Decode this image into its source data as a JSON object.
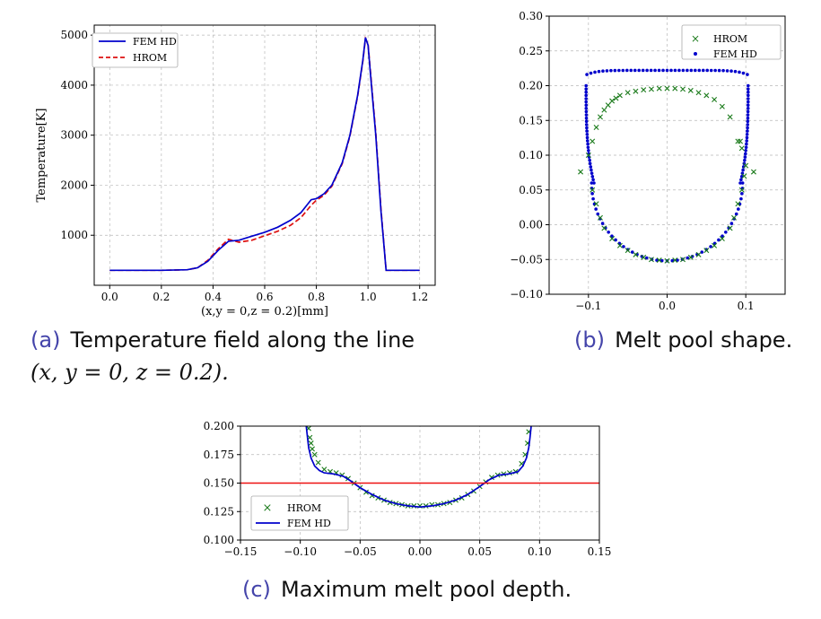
{
  "captions": {
    "a_label": "(a)",
    "a_text": "Temperature field along the line",
    "a_math": "(x, y = 0, z = 0.2).",
    "b_label": "(b)",
    "b_text": "Melt pool shape.",
    "c_label": "(c)",
    "c_text": "Maximum melt pool depth."
  },
  "colors": {
    "fem": "#0000cc",
    "hrom": "#dd1111",
    "hrom_marker": "#1a7a1a",
    "threshold": "#ee1111"
  },
  "chart_data": [
    {
      "type": "line",
      "id": "a",
      "xlabel": "(x,y = 0,z = 0.2)[mm]",
      "ylabel": "Temperature[K]",
      "xlim": [
        -0.06,
        1.26
      ],
      "ylim": [
        0,
        5200
      ],
      "xticks": [
        0.0,
        0.2,
        0.4,
        0.6,
        0.8,
        1.0,
        1.2
      ],
      "xtick_labels": [
        "0.0",
        "0.2",
        "0.4",
        "0.6",
        "0.8",
        "1.0",
        "1.2"
      ],
      "yticks": [
        1000,
        2000,
        3000,
        4000,
        5000
      ],
      "ytick_labels": [
        "1000",
        "2000",
        "3000",
        "4000",
        "5000"
      ],
      "grid": true,
      "legend_position": "top-left",
      "series": [
        {
          "name": "FEM HD",
          "style": "solid",
          "x": [
            0.0,
            0.2,
            0.3,
            0.34,
            0.38,
            0.42,
            0.46,
            0.5,
            0.55,
            0.6,
            0.65,
            0.7,
            0.74,
            0.78,
            0.8,
            0.83,
            0.86,
            0.9,
            0.93,
            0.96,
            0.98,
            0.99,
            1.0,
            1.01,
            1.03,
            1.05,
            1.07,
            1.1,
            1.2
          ],
          "y": [
            300,
            300,
            310,
            350,
            480,
            700,
            880,
            900,
            980,
            1060,
            1160,
            1300,
            1450,
            1710,
            1730,
            1830,
            2000,
            2450,
            3000,
            3800,
            4500,
            4950,
            4800,
            4200,
            3000,
            1500,
            300,
            300,
            300
          ]
        },
        {
          "name": "HROM",
          "style": "dashed",
          "x": [
            0.0,
            0.2,
            0.3,
            0.34,
            0.38,
            0.42,
            0.46,
            0.5,
            0.55,
            0.6,
            0.65,
            0.7,
            0.74,
            0.78,
            0.8,
            0.83,
            0.86,
            0.9,
            0.93,
            0.96,
            0.98,
            0.99,
            1.0,
            1.01,
            1.03,
            1.05,
            1.07,
            1.1,
            1.2
          ],
          "y": [
            300,
            300,
            310,
            350,
            500,
            730,
            920,
            860,
            900,
            990,
            1080,
            1200,
            1350,
            1600,
            1700,
            1800,
            1980,
            2430,
            2980,
            3780,
            4480,
            4930,
            4820,
            4250,
            3050,
            1550,
            300,
            300,
            300
          ]
        }
      ]
    },
    {
      "type": "scatter",
      "id": "b",
      "xlim": [
        -0.15,
        0.15
      ],
      "ylim": [
        -0.1,
        0.3
      ],
      "xticks": [
        -0.1,
        0.0,
        0.1
      ],
      "xtick_labels": [
        "−0.1",
        "0.0",
        "0.1"
      ],
      "yticks": [
        -0.1,
        -0.05,
        0.0,
        0.05,
        0.1,
        0.15,
        0.2,
        0.25,
        0.3
      ],
      "ytick_labels": [
        "−0.10",
        "−0.05",
        "0.00",
        "0.05",
        "0.10",
        "0.15",
        "0.20",
        "0.25",
        "0.30"
      ],
      "grid": true,
      "legend_position": "top-right",
      "series": [
        {
          "name": "HROM",
          "marker": "x",
          "points": [
            [
              -0.11,
              0.076
            ],
            [
              -0.1,
              0.1
            ],
            [
              -0.095,
              0.12
            ],
            [
              -0.09,
              0.14
            ],
            [
              -0.085,
              0.155
            ],
            [
              -0.08,
              0.165
            ],
            [
              -0.075,
              0.172
            ],
            [
              -0.07,
              0.178
            ],
            [
              -0.065,
              0.182
            ],
            [
              -0.06,
              0.186
            ],
            [
              -0.05,
              0.19
            ],
            [
              -0.04,
              0.192
            ],
            [
              -0.03,
              0.194
            ],
            [
              -0.02,
              0.195
            ],
            [
              -0.01,
              0.196
            ],
            [
              0.0,
              0.196
            ],
            [
              0.01,
              0.196
            ],
            [
              0.02,
              0.195
            ],
            [
              0.03,
              0.193
            ],
            [
              0.04,
              0.19
            ],
            [
              0.05,
              0.186
            ],
            [
              0.06,
              0.18
            ],
            [
              0.07,
              0.17
            ],
            [
              0.08,
              0.155
            ],
            [
              0.09,
              0.12
            ],
            [
              0.1,
              0.085
            ],
            [
              0.11,
              0.076
            ],
            [
              -0.095,
              0.05
            ],
            [
              -0.09,
              0.03
            ],
            [
              -0.085,
              0.01
            ],
            [
              -0.08,
              -0.005
            ],
            [
              -0.07,
              -0.02
            ],
            [
              -0.06,
              -0.03
            ],
            [
              -0.05,
              -0.037
            ],
            [
              -0.04,
              -0.043
            ],
            [
              -0.03,
              -0.047
            ],
            [
              -0.02,
              -0.05
            ],
            [
              -0.01,
              -0.051
            ],
            [
              0.0,
              -0.052
            ],
            [
              0.01,
              -0.051
            ],
            [
              0.02,
              -0.05
            ],
            [
              0.03,
              -0.047
            ],
            [
              0.04,
              -0.043
            ],
            [
              0.05,
              -0.037
            ],
            [
              0.06,
              -0.03
            ],
            [
              0.07,
              -0.02
            ],
            [
              0.08,
              -0.005
            ],
            [
              0.085,
              0.01
            ],
            [
              0.09,
              0.03
            ],
            [
              0.095,
              0.05
            ],
            [
              0.098,
              0.07
            ],
            [
              0.095,
              0.11
            ],
            [
              0.093,
              0.12
            ]
          ]
        },
        {
          "name": "FEM HD",
          "marker": "dot",
          "points": []
        }
      ]
    },
    {
      "type": "line",
      "id": "c",
      "xlim": [
        -0.15,
        0.15
      ],
      "ylim": [
        0.1,
        0.2
      ],
      "xticks": [
        -0.15,
        -0.1,
        -0.05,
        0.0,
        0.05,
        0.1,
        0.15
      ],
      "xtick_labels": [
        "−0.15",
        "−0.10",
        "−0.05",
        "0.00",
        "0.05",
        "0.10",
        "0.15"
      ],
      "yticks": [
        0.1,
        0.125,
        0.15,
        0.175,
        0.2
      ],
      "ytick_labels": [
        "0.100",
        "0.125",
        "0.150",
        "0.175",
        "0.200"
      ],
      "grid": true,
      "legend_position": "bottom-left",
      "threshold": 0.15,
      "series": [
        {
          "name": "HROM",
          "marker": "x",
          "points": [
            [
              -0.093,
              0.198
            ],
            [
              -0.092,
              0.19
            ],
            [
              -0.091,
              0.185
            ],
            [
              -0.09,
              0.18
            ],
            [
              -0.088,
              0.175
            ],
            [
              -0.085,
              0.168
            ],
            [
              -0.08,
              0.162
            ],
            [
              -0.075,
              0.16
            ],
            [
              -0.07,
              0.159
            ],
            [
              -0.065,
              0.157
            ],
            [
              -0.06,
              0.154
            ],
            [
              -0.055,
              0.15
            ],
            [
              -0.05,
              0.146
            ],
            [
              -0.045,
              0.142
            ],
            [
              -0.04,
              0.139
            ],
            [
              -0.035,
              0.137
            ],
            [
              -0.03,
              0.135
            ],
            [
              -0.025,
              0.133
            ],
            [
              -0.02,
              0.132
            ],
            [
              -0.015,
              0.131
            ],
            [
              -0.01,
              0.13
            ],
            [
              -0.005,
              0.13
            ],
            [
              0.0,
              0.13
            ],
            [
              0.005,
              0.13
            ],
            [
              0.01,
              0.131
            ],
            [
              0.015,
              0.131
            ],
            [
              0.02,
              0.132
            ],
            [
              0.025,
              0.133
            ],
            [
              0.03,
              0.135
            ],
            [
              0.035,
              0.137
            ],
            [
              0.04,
              0.14
            ],
            [
              0.045,
              0.143
            ],
            [
              0.05,
              0.147
            ],
            [
              0.055,
              0.151
            ],
            [
              0.06,
              0.155
            ],
            [
              0.065,
              0.157
            ],
            [
              0.07,
              0.158
            ],
            [
              0.075,
              0.159
            ],
            [
              0.08,
              0.16
            ],
            [
              0.085,
              0.167
            ],
            [
              0.088,
              0.175
            ],
            [
              0.09,
              0.185
            ],
            [
              0.091,
              0.195
            ]
          ]
        },
        {
          "name": "FEM HD",
          "style": "solid",
          "x": [
            -0.095,
            -0.094,
            -0.093,
            -0.091,
            -0.088,
            -0.084,
            -0.08,
            -0.072,
            -0.064,
            -0.058,
            -0.05,
            -0.04,
            -0.03,
            -0.02,
            -0.01,
            0.0,
            0.01,
            0.02,
            0.03,
            0.04,
            0.05,
            0.058,
            0.066,
            0.074,
            0.082,
            0.086,
            0.089,
            0.091,
            0.092,
            0.093
          ],
          "y": [
            0.2,
            0.19,
            0.181,
            0.172,
            0.165,
            0.161,
            0.159,
            0.158,
            0.156,
            0.152,
            0.146,
            0.14,
            0.135,
            0.132,
            0.13,
            0.129,
            0.13,
            0.132,
            0.135,
            0.14,
            0.147,
            0.153,
            0.157,
            0.158,
            0.16,
            0.165,
            0.172,
            0.181,
            0.19,
            0.2
          ]
        }
      ]
    }
  ]
}
